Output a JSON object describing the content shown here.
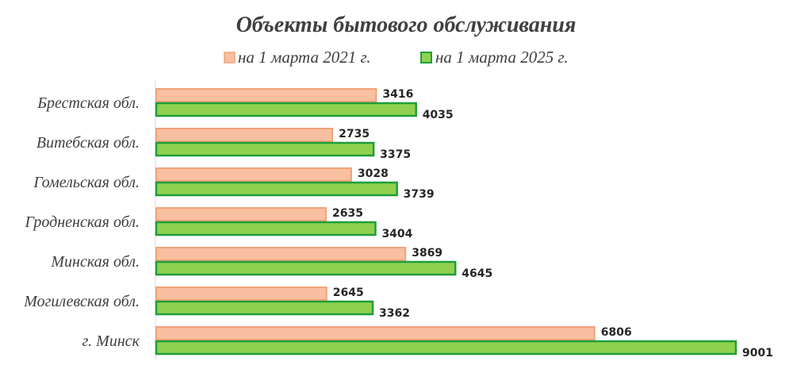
{
  "chart_data": {
    "type": "bar",
    "orientation": "horizontal",
    "title": "Объекты бытового обслуживания",
    "categories": [
      "Брестская обл.",
      "Витебская обл.",
      "Гомельская обл.",
      "Гродненская обл.",
      "Минская обл.",
      "Могилевская обл.",
      "г. Минск"
    ],
    "series": [
      {
        "name": "на 1 марта 2021 г.",
        "values": [
          3416,
          2735,
          3028,
          2635,
          3869,
          2645,
          6806
        ],
        "color": "#f8bfa0",
        "border": "#f0a37a"
      },
      {
        "name": "на 1 марта 2025 г.",
        "values": [
          4035,
          3375,
          3739,
          3404,
          4645,
          3362,
          9001
        ],
        "color": "#8fd14f",
        "border": "#1e9e3a"
      }
    ],
    "xlim": [
      0,
      9000
    ],
    "legend_position": "top",
    "grid": false
  }
}
